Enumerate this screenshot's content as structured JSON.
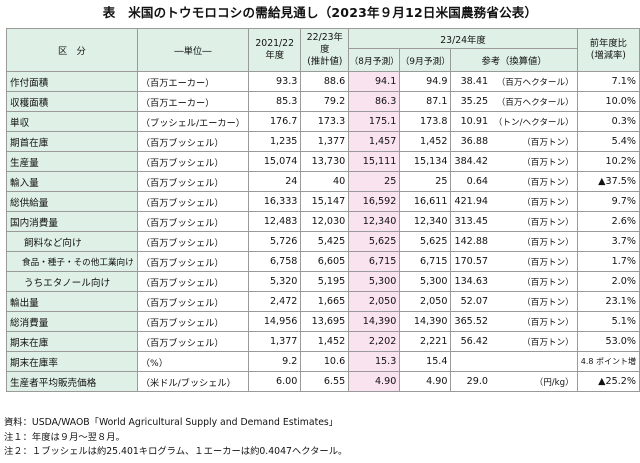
{
  "title": "表　米国のトウモロコシの需給見通し（2023年９月12日米国農務省公表）",
  "header": {
    "kubun": "区　分",
    "unit": "―単位―",
    "y2122": "2021/22\n年度",
    "y2223": "22/23年度\n(推計値)",
    "y2324": "23/24年度",
    "aug": "（8月予測）",
    "sep": "（9月予測）",
    "ref": "参考（換算値）",
    "yoy": "前年度比\n(増減率)"
  },
  "rows": [
    {
      "label": "作付面積",
      "unit": "（百万エーカー）",
      "y2122": "93.3",
      "y2223": "88.6",
      "aug": "94.1",
      "sep": "94.9",
      "ref": "38.41",
      "ref_unit": "（百万ヘクタール）",
      "yoy": "7.1%",
      "indent": 0
    },
    {
      "label": "収穫面積",
      "unit": "（百万エーカー）",
      "y2122": "85.3",
      "y2223": "79.2",
      "aug": "86.3",
      "sep": "87.1",
      "ref": "35.25",
      "ref_unit": "（百万ヘクタール）",
      "yoy": "10.0%",
      "indent": 0
    },
    {
      "label": "単収",
      "unit": "（ブッシェル/エーカー）",
      "y2122": "176.7",
      "y2223": "173.3",
      "aug": "175.1",
      "sep": "173.8",
      "ref": "10.91",
      "ref_unit": "（トン/ヘクタール）",
      "yoy": "0.3%",
      "indent": 0
    },
    {
      "label": "期首在庫",
      "unit": "（百万ブッシェル）",
      "y2122": "1,235",
      "y2223": "1,377",
      "aug": "1,457",
      "sep": "1,452",
      "ref": "36.88",
      "ref_unit": "（百万トン）",
      "yoy": "5.4%",
      "indent": 0
    },
    {
      "label": "生産量",
      "unit": "（百万ブッシェル）",
      "y2122": "15,074",
      "y2223": "13,730",
      "aug": "15,111",
      "sep": "15,134",
      "ref": "384.42",
      "ref_unit": "（百万トン）",
      "yoy": "10.2%",
      "indent": 0
    },
    {
      "label": "輸入量",
      "unit": "（百万ブッシェル）",
      "y2122": "24",
      "y2223": "40",
      "aug": "25",
      "sep": "25",
      "ref": "0.64",
      "ref_unit": "（百万トン）",
      "yoy": "▲37.5%",
      "indent": 0
    },
    {
      "label": "総供給量",
      "unit": "（百万ブッシェル）",
      "y2122": "16,333",
      "y2223": "15,147",
      "aug": "16,592",
      "sep": "16,611",
      "ref": "421.94",
      "ref_unit": "（百万トン）",
      "yoy": "9.7%",
      "indent": 0
    },
    {
      "label": "国内消費量",
      "unit": "（百万ブッシェル）",
      "y2122": "12,483",
      "y2223": "12,030",
      "aug": "12,340",
      "sep": "12,340",
      "ref": "313.45",
      "ref_unit": "（百万トン）",
      "yoy": "2.6%",
      "indent": 0
    },
    {
      "label": "飼料など向け",
      "unit": "（百万ブッシェル）",
      "y2122": "5,726",
      "y2223": "5,425",
      "aug": "5,625",
      "sep": "5,625",
      "ref": "142.88",
      "ref_unit": "（百万トン）",
      "yoy": "3.7%",
      "indent": 1
    },
    {
      "label": "食品・種子・その他工業向け",
      "unit": "（百万ブッシェル）",
      "y2122": "6,758",
      "y2223": "6,605",
      "aug": "6,715",
      "sep": "6,715",
      "ref": "170.57",
      "ref_unit": "（百万トン）",
      "yoy": "1.7%",
      "indent": 2
    },
    {
      "label": "うちエタノール向け",
      "unit": "（百万ブッシェル）",
      "y2122": "5,320",
      "y2223": "5,195",
      "aug": "5,300",
      "sep": "5,300",
      "ref": "134.63",
      "ref_unit": "（百万トン）",
      "yoy": "2.0%",
      "indent": 1
    },
    {
      "label": "輸出量",
      "unit": "（百万ブッシェル）",
      "y2122": "2,472",
      "y2223": "1,665",
      "aug": "2,050",
      "sep": "2,050",
      "ref": "52.07",
      "ref_unit": "（百万トン）",
      "yoy": "23.1%",
      "indent": 0
    },
    {
      "label": "総消費量",
      "unit": "（百万ブッシェル）",
      "y2122": "14,956",
      "y2223": "13,695",
      "aug": "14,390",
      "sep": "14,390",
      "ref": "365.52",
      "ref_unit": "（百万トン）",
      "yoy": "5.1%",
      "indent": 0
    },
    {
      "label": "期末在庫",
      "unit": "（百万ブッシェル）",
      "y2122": "1,377",
      "y2223": "1,452",
      "aug": "2,202",
      "sep": "2,221",
      "ref": "56.42",
      "ref_unit": "（百万トン）",
      "yoy": "53.0%",
      "indent": 0
    },
    {
      "label": "期末在庫率",
      "unit": "（%）",
      "y2122": "9.2",
      "y2223": "10.6",
      "aug": "15.3",
      "sep": "15.4",
      "ref": "",
      "ref_unit": "",
      "yoy": "4.8 ポイント増",
      "indent": 0
    },
    {
      "label": "生産者平均販売価格",
      "unit": "（米ドル/ブッシェル）",
      "y2122": "6.00",
      "y2223": "6.55",
      "aug": "4.90",
      "sep": "4.90",
      "ref": "29.0",
      "ref_unit": "（円/kg）",
      "yoy": "▲25.2%",
      "indent": 0
    }
  ],
  "notes": [
    "資料：USDA/WAOB「World Agricultural Supply and Demand Estimates」",
    "注１：年度は９月～翌８月。",
    "注２：１ブッシェルは約25.401キログラム、１エーカーは約0.4047ヘクタール。"
  ],
  "colors": {
    "header_bg": "#dff0e6",
    "highlight_bg": "#f9e3ee",
    "border": "#9a9a9a"
  }
}
